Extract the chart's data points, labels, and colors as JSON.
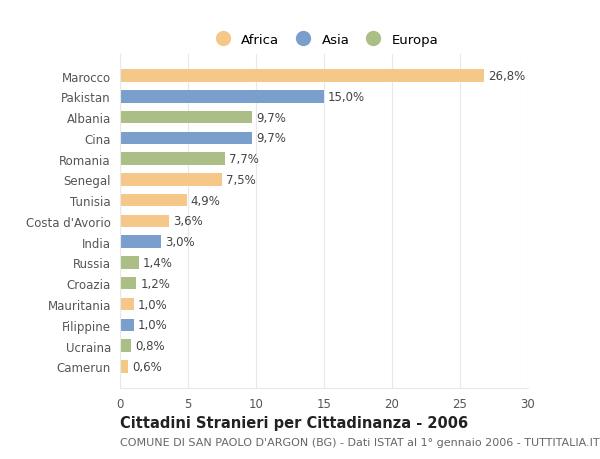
{
  "countries": [
    "Marocco",
    "Pakistan",
    "Albania",
    "Cina",
    "Romania",
    "Senegal",
    "Tunisia",
    "Costa d'Avorio",
    "India",
    "Russia",
    "Croazia",
    "Mauritania",
    "Filippine",
    "Ucraina",
    "Camerun"
  ],
  "values": [
    26.8,
    15.0,
    9.7,
    9.7,
    7.7,
    7.5,
    4.9,
    3.6,
    3.0,
    1.4,
    1.2,
    1.0,
    1.0,
    0.8,
    0.6
  ],
  "labels": [
    "26,8%",
    "15,0%",
    "9,7%",
    "9,7%",
    "7,7%",
    "7,5%",
    "4,9%",
    "3,6%",
    "3,0%",
    "1,4%",
    "1,2%",
    "1,0%",
    "1,0%",
    "0,8%",
    "0,6%"
  ],
  "continents": [
    "Africa",
    "Asia",
    "Europa",
    "Asia",
    "Europa",
    "Africa",
    "Africa",
    "Africa",
    "Asia",
    "Europa",
    "Europa",
    "Africa",
    "Asia",
    "Europa",
    "Africa"
  ],
  "colors": {
    "Africa": "#F5C88A",
    "Asia": "#7B9FCC",
    "Europa": "#ABBE85"
  },
  "title": "Cittadini Stranieri per Cittadinanza - 2006",
  "subtitle": "COMUNE DI SAN PAOLO D'ARGON (BG) - Dati ISTAT al 1° gennaio 2006 - TUTTITALIA.IT",
  "xlim": [
    0,
    30
  ],
  "xticks": [
    0,
    5,
    10,
    15,
    20,
    25,
    30
  ],
  "bg_color": "#FFFFFF",
  "bar_height": 0.6,
  "label_fontsize": 8.5,
  "tick_fontsize": 8.5,
  "title_fontsize": 10.5,
  "subtitle_fontsize": 8.0,
  "grid_color": "#E8E8E8",
  "text_color": "#555555",
  "label_color": "#444444"
}
